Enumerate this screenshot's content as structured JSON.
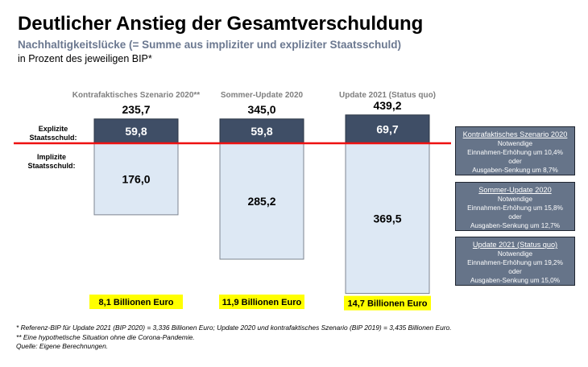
{
  "header": {
    "title": "Deutlicher Anstieg der Gesamtverschuldung",
    "subtitle": "Nachhaltigkeitslücke (= Summe aus impliziter und expliziter Staatsschuld)",
    "unit": "in Prozent des jeweiligen BIP*"
  },
  "colors": {
    "explicit": "#3f4e66",
    "implicit": "#dde8f4",
    "divider_line": "#ee1111",
    "euro_highlight": "#ffff00",
    "info_box": "#667489"
  },
  "chart_data": {
    "type": "bar",
    "stacked": true,
    "title": "Deutlicher Anstieg der Gesamtverschuldung",
    "subtitle": "Nachhaltigkeitslücke (= Summe aus impliziter und expliziter Staatsschuld)",
    "ylabel": "in Prozent des jeweiligen BIP*",
    "categories": [
      "Kontrafaktisches Szenario 2020**",
      "Sommer-Update 2020",
      "Update 2021 (Status quo)"
    ],
    "totals": [
      "235,7",
      "345,0",
      "439,2"
    ],
    "series": [
      {
        "name": "Explizite Staatsschuld:",
        "values": [
          59.8,
          59.8,
          69.7
        ],
        "labels": [
          "59,8",
          "59,8",
          "69,7"
        ]
      },
      {
        "name": "Implizite Staatsschuld:",
        "values": [
          176.0,
          285.2,
          369.5
        ],
        "labels": [
          "176,0",
          "285,2",
          "369,5"
        ]
      }
    ],
    "euro_amounts": [
      "8,1 Billionen Euro",
      "11,9 Billionen Euro",
      "14,7 Billionen Euro"
    ],
    "grid": false,
    "legend": "left"
  },
  "side_labels": {
    "explicit": [
      "Explizite",
      "Staatsschuld:"
    ],
    "implicit": [
      "Implizite",
      "Staatsschuld:"
    ]
  },
  "info_boxes": [
    {
      "heading": "Kontrafaktisches Szenario 2020",
      "line1": "Notwendige",
      "line2": "Einnahmen-Erhöhung um 10,4%",
      "line3": "oder",
      "line4": "Ausgaben-Senkung um 8,7%"
    },
    {
      "heading": "Sommer-Update 2020",
      "line1": "Notwendige",
      "line2": "Einnahmen-Erhöhung um 15,8%",
      "line3": "oder",
      "line4": "Ausgaben-Senkung um 12,7%"
    },
    {
      "heading": "Update 2021 (Status quo)",
      "line1": "Notwendige",
      "line2": "Einnahmen-Erhöhung um 19,2%",
      "line3": "oder",
      "line4": "Ausgaben-Senkung um 15,0%"
    }
  ],
  "footnotes": {
    "line1": "* Referenz-BIP für Update 2021 (BIP 2020) = 3,336 Billionen Euro; Update 2020 und kontrafaktisches Szenario (BIP 2019) = 3,435 Billionen Euro.",
    "line2": "** Eine hypothetische Situation ohne die Corona-Pandemie.",
    "line3": "Quelle: Eigene Berechnungen."
  }
}
